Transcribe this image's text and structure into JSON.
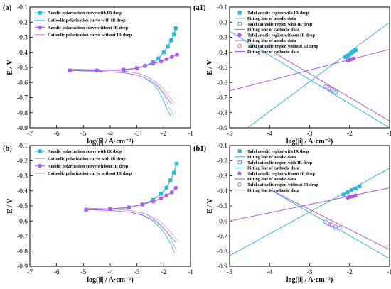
{
  "colors": {
    "cyan": "#2fb5d6",
    "violet": "#b25ae8",
    "cyan_fit": "#3db4e3",
    "violet_fit": "#b15be6"
  },
  "chart_data": [
    {
      "id": "a",
      "type": "line",
      "panel_label": "(a)",
      "xlabel": "log(|i| / A·cm⁻²)",
      "ylabel": "E / V",
      "xlim": [
        -7,
        -1
      ],
      "ylim": [
        -0.9,
        -0.1
      ],
      "x_ticks": [
        -7,
        -6,
        -5,
        -4,
        -3,
        -2,
        -1
      ],
      "y_ticks": [
        -0.1,
        -0.2,
        -0.3,
        -0.4,
        -0.5,
        -0.6,
        -0.7,
        -0.8,
        -0.9
      ],
      "x_tick_labels": [
        "-7",
        "-6",
        "-5",
        "-4",
        "-3",
        "-2",
        "-1"
      ],
      "y_tick_labels": [
        "-0.1",
        "-0.2",
        "-0.3",
        "-0.4",
        "-0.5",
        "-0.6",
        "-0.7",
        "-0.8",
        "-0.9"
      ],
      "legend_position": "top-left",
      "legend": [
        "Anodic polarization curve with IR drop",
        "Cathodic polarization curve with IR drop",
        "Anodic polarization curve without IR drop",
        "Cathodic polarization curve without IR drop"
      ],
      "series": [
        {
          "name": "Anodic polarization curve with IR drop",
          "color": "#2fb5d6",
          "style": "solid-marker",
          "marker": "square",
          "points": [
            [
              -5.5,
              -0.52
            ],
            [
              -4.5,
              -0.52
            ],
            [
              -3.5,
              -0.515
            ],
            [
              -3.0,
              -0.505
            ],
            [
              -2.7,
              -0.49
            ],
            [
              -2.4,
              -0.465
            ],
            [
              -2.2,
              -0.44
            ],
            [
              -2.0,
              -0.4
            ],
            [
              -1.85,
              -0.36
            ],
            [
              -1.72,
              -0.32
            ],
            [
              -1.62,
              -0.28
            ],
            [
              -1.55,
              -0.24
            ]
          ]
        },
        {
          "name": "Cathodic polarization curve with IR drop",
          "color": "#2fb5d6",
          "style": "thin",
          "points": [
            [
              -5.5,
              -0.52
            ],
            [
              -4.5,
              -0.525
            ],
            [
              -3.5,
              -0.535
            ],
            [
              -3.0,
              -0.55
            ],
            [
              -2.7,
              -0.57
            ],
            [
              -2.4,
              -0.61
            ],
            [
              -2.2,
              -0.65
            ],
            [
              -2.0,
              -0.72
            ],
            [
              -1.9,
              -0.77
            ],
            [
              -1.8,
              -0.8
            ],
            [
              -1.72,
              -0.83
            ]
          ]
        },
        {
          "name": "Anodic polarization curve without IR drop",
          "color": "#b25ae8",
          "style": "solid-marker",
          "marker": "circle",
          "points": [
            [
              -5.5,
              -0.52
            ],
            [
              -4.5,
              -0.52
            ],
            [
              -3.5,
              -0.515
            ],
            [
              -3.0,
              -0.505
            ],
            [
              -2.7,
              -0.49
            ],
            [
              -2.4,
              -0.475
            ],
            [
              -2.1,
              -0.46
            ],
            [
              -1.9,
              -0.445
            ],
            [
              -1.7,
              -0.43
            ],
            [
              -1.5,
              -0.415
            ]
          ]
        },
        {
          "name": "Cathodic polarization curve without IR drop",
          "color": "#b25ae8",
          "style": "thin",
          "points": [
            [
              -5.5,
              -0.52
            ],
            [
              -4.5,
              -0.525
            ],
            [
              -3.5,
              -0.535
            ],
            [
              -3.0,
              -0.55
            ],
            [
              -2.7,
              -0.57
            ],
            [
              -2.4,
              -0.6
            ],
            [
              -2.2,
              -0.63
            ],
            [
              -2.0,
              -0.67
            ],
            [
              -1.85,
              -0.71
            ],
            [
              -1.7,
              -0.745
            ]
          ]
        }
      ]
    },
    {
      "id": "a1",
      "type": "scatter",
      "panel_label": "(a1)",
      "xlabel": "log(|i| / A·cm⁻²)",
      "ylabel": "E / V",
      "xlim": [
        -5,
        -1
      ],
      "ylim": [
        -0.9,
        -0.1
      ],
      "x_ticks": [
        -5,
        -4,
        -3,
        -2,
        -1
      ],
      "y_ticks": [
        -0.1,
        -0.2,
        -0.3,
        -0.4,
        -0.5,
        -0.6,
        -0.7,
        -0.8,
        -0.9
      ],
      "x_tick_labels": [
        "-5",
        "-4",
        "-3",
        "-2",
        "-1"
      ],
      "y_tick_labels": [
        "-0.1",
        "-0.2",
        "-0.3",
        "-0.4",
        "-0.5",
        "-0.6",
        "-0.7",
        "-0.8",
        "-0.9"
      ],
      "legend_position": "top-left",
      "legend": [
        "Tafel anodic region with IR drop",
        "Fitting line of anodic data",
        "Tafel cathodic region with IR drop",
        "Fitting line of cathodic data",
        "Tafel anodic region without IR drop",
        "Fitting line of anodic data",
        "Tafel cathodic region without IR drop",
        "Fitting line of cathodic data"
      ],
      "fit_lines": [
        {
          "color": "#3db4e3",
          "from": [
            -4.55,
            -0.9
          ],
          "to": [
            -1.0,
            -0.2
          ]
        },
        {
          "color": "#3db4e3",
          "from": [
            -5.0,
            -0.26
          ],
          "to": [
            -1.0,
            -0.9
          ]
        },
        {
          "color": "#b15be6",
          "from": [
            -5.0,
            -0.655
          ],
          "to": [
            -1.0,
            -0.38
          ]
        },
        {
          "color": "#b15be6",
          "from": [
            -3.9,
            -0.4
          ],
          "to": [
            -1.0,
            -0.855
          ]
        }
      ],
      "series": [
        {
          "name": "Tafel anodic region with IR drop",
          "color": "#2fb5d6",
          "marker": "square",
          "points": [
            [
              -2.1,
              -0.43
            ],
            [
              -2.05,
              -0.425
            ],
            [
              -2.0,
              -0.415
            ],
            [
              -1.95,
              -0.405
            ],
            [
              -1.9,
              -0.395
            ],
            [
              -1.85,
              -0.385
            ]
          ]
        },
        {
          "name": "Tafel cathodic region with IR drop",
          "color": "#2fb5d6",
          "marker": "square-open",
          "points": [
            [
              -2.55,
              -0.63
            ],
            [
              -2.5,
              -0.64
            ],
            [
              -2.45,
              -0.645
            ],
            [
              -2.4,
              -0.655
            ],
            [
              -2.35,
              -0.665
            ]
          ]
        },
        {
          "name": "Tafel anodic region without IR drop",
          "color": "#b25ae8",
          "marker": "circle",
          "points": [
            [
              -2.05,
              -0.455
            ],
            [
              -2.0,
              -0.45
            ],
            [
              -1.95,
              -0.445
            ],
            [
              -1.9,
              -0.44
            ]
          ]
        },
        {
          "name": "Tafel cathodic region without IR drop",
          "color": "#b25ae8",
          "marker": "circle-open",
          "points": [
            [
              -2.6,
              -0.625
            ],
            [
              -2.55,
              -0.63
            ],
            [
              -2.5,
              -0.64
            ],
            [
              -2.45,
              -0.645
            ]
          ]
        }
      ]
    },
    {
      "id": "b",
      "type": "line",
      "panel_label": "(b)",
      "xlabel": "log(|i| / A·cm⁻²)",
      "ylabel": "E / V",
      "xlim": [
        -7,
        -1
      ],
      "ylim": [
        -0.9,
        -0.1
      ],
      "x_ticks": [
        -7,
        -6,
        -5,
        -4,
        -3,
        -2,
        -1
      ],
      "y_ticks": [
        -0.1,
        -0.2,
        -0.3,
        -0.4,
        -0.5,
        -0.6,
        -0.7,
        -0.8,
        -0.9
      ],
      "x_tick_labels": [
        "-7",
        "-6",
        "-5",
        "-4",
        "-3",
        "-2",
        "-1"
      ],
      "y_tick_labels": [
        "-0.1",
        "-0.2",
        "-0.3",
        "-0.4",
        "-0.5",
        "-0.6",
        "-0.7",
        "-0.8",
        "-0.9"
      ],
      "legend_position": "top-left",
      "legend": [
        "Anodic polarization curve with IR drop",
        "Cathodic polarization curve with IR drop",
        "Anodic polarization curve without IR drop",
        "Cathodic polarization curve without IR drop"
      ],
      "series": [
        {
          "name": "Anodic polarization curve with IR drop",
          "color": "#2fb5d6",
          "style": "solid-marker",
          "marker": "square",
          "points": [
            [
              -4.9,
              -0.525
            ],
            [
              -4.0,
              -0.52
            ],
            [
              -3.3,
              -0.51
            ],
            [
              -2.8,
              -0.49
            ],
            [
              -2.4,
              -0.46
            ],
            [
              -2.1,
              -0.42
            ],
            [
              -1.9,
              -0.38
            ],
            [
              -1.75,
              -0.33
            ],
            [
              -1.62,
              -0.28
            ],
            [
              -1.52,
              -0.22
            ]
          ]
        },
        {
          "name": "Cathodic polarization curve with IR drop",
          "color": "#2fb5d6",
          "style": "thin",
          "points": [
            [
              -4.9,
              -0.525
            ],
            [
              -4.0,
              -0.53
            ],
            [
              -3.3,
              -0.54
            ],
            [
              -2.8,
              -0.56
            ],
            [
              -2.4,
              -0.6
            ],
            [
              -2.1,
              -0.65
            ],
            [
              -1.9,
              -0.7
            ],
            [
              -1.75,
              -0.75
            ],
            [
              -1.6,
              -0.81
            ]
          ]
        },
        {
          "name": "Anodic polarization curve without IR drop",
          "color": "#b25ae8",
          "style": "solid-marker",
          "marker": "circle",
          "points": [
            [
              -4.9,
              -0.525
            ],
            [
              -4.0,
              -0.52
            ],
            [
              -3.3,
              -0.51
            ],
            [
              -2.8,
              -0.49
            ],
            [
              -2.4,
              -0.47
            ],
            [
              -2.1,
              -0.45
            ],
            [
              -1.9,
              -0.43
            ],
            [
              -1.7,
              -0.41
            ],
            [
              -1.55,
              -0.38
            ]
          ]
        },
        {
          "name": "Cathodic polarization curve without IR drop",
          "color": "#b25ae8",
          "style": "thin",
          "points": [
            [
              -4.9,
              -0.525
            ],
            [
              -4.0,
              -0.53
            ],
            [
              -3.3,
              -0.54
            ],
            [
              -2.8,
              -0.56
            ],
            [
              -2.4,
              -0.59
            ],
            [
              -2.1,
              -0.63
            ],
            [
              -1.9,
              -0.67
            ],
            [
              -1.7,
              -0.71
            ],
            [
              -1.55,
              -0.74
            ]
          ]
        }
      ]
    },
    {
      "id": "b1",
      "type": "scatter",
      "panel_label": "(b1)",
      "xlabel": "log(|i| / A·cm⁻²)",
      "ylabel": "E / V",
      "xlim": [
        -5,
        -1
      ],
      "ylim": [
        -0.9,
        -0.1
      ],
      "x_ticks": [
        -5,
        -4,
        -3,
        -2,
        -1
      ],
      "y_ticks": [
        -0.1,
        -0.2,
        -0.3,
        -0.4,
        -0.5,
        -0.6,
        -0.7,
        -0.8,
        -0.9
      ],
      "x_tick_labels": [
        "-5",
        "-4",
        "-3",
        "-2",
        "-1"
      ],
      "y_tick_labels": [
        "-0.1",
        "-0.2",
        "-0.3",
        "-0.4",
        "-0.5",
        "-0.6",
        "-0.7",
        "-0.8",
        "-0.9"
      ],
      "legend_position": "top-left",
      "legend": [
        "Tafel anodic region with IR drop",
        "Fitting line of anodic data",
        "Tafel cathodic region with IR drop",
        "Fitting line of cathodic data",
        "Tafel anodic region without IR drop",
        "Fitting line of anodic data",
        "Tafel cathodic region without IR drop",
        "Fitting line of cathodic data"
      ],
      "fit_lines": [
        {
          "color": "#3db4e3",
          "from": [
            -5.0,
            -0.83
          ],
          "to": [
            -1.0,
            -0.25
          ]
        },
        {
          "color": "#3db4e3",
          "from": [
            -4.0,
            -0.39
          ],
          "to": [
            -1.0,
            -0.85
          ]
        },
        {
          "color": "#b15be6",
          "from": [
            -5.0,
            -0.6
          ],
          "to": [
            -1.0,
            -0.38
          ]
        },
        {
          "color": "#b15be6",
          "from": [
            -4.0,
            -0.39
          ],
          "to": [
            -1.0,
            -0.79
          ]
        }
      ],
      "series": [
        {
          "name": "Tafel anodic region with IR drop",
          "color": "#2fb5d6",
          "marker": "square",
          "points": [
            [
              -2.15,
              -0.425
            ],
            [
              -2.05,
              -0.41
            ],
            [
              -1.95,
              -0.395
            ],
            [
              -1.85,
              -0.385
            ],
            [
              -1.75,
              -0.37
            ]
          ]
        },
        {
          "name": "Tafel cathodic region with IR drop",
          "color": "#2fb5d6",
          "marker": "square-open",
          "points": [
            [
              -2.6,
              -0.605
            ],
            [
              -2.5,
              -0.62
            ],
            [
              -2.45,
              -0.63
            ],
            [
              -2.35,
              -0.645
            ],
            [
              -2.25,
              -0.655
            ]
          ]
        },
        {
          "name": "Tafel anodic region without IR drop",
          "color": "#b25ae8",
          "marker": "circle",
          "points": [
            [
              -2.05,
              -0.445
            ],
            [
              -2.0,
              -0.44
            ],
            [
              -1.95,
              -0.438
            ],
            [
              -1.9,
              -0.435
            ],
            [
              -1.85,
              -0.43
            ]
          ]
        },
        {
          "name": "Tafel cathodic region without IR drop",
          "color": "#b25ae8",
          "marker": "circle-open",
          "points": [
            [
              -2.55,
              -0.615
            ],
            [
              -2.45,
              -0.625
            ],
            [
              -2.35,
              -0.635
            ],
            [
              -2.25,
              -0.645
            ]
          ]
        }
      ]
    }
  ]
}
